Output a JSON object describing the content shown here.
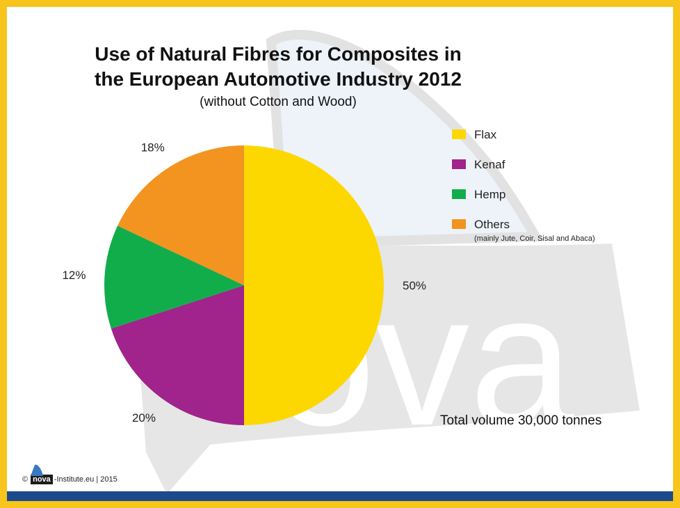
{
  "colors": {
    "background_border": "#f7c51b",
    "bottom_bar": "#1d4a8c",
    "watermark": "#e5e5e5",
    "watermark_light": "#edf3f9"
  },
  "chart_data": {
    "type": "pie",
    "title_line1": "Use of Natural Fibres for Composites in",
    "title_line2": "the European Automotive Industry 2012",
    "subtitle": "(without Cotton and Wood)",
    "slices": [
      {
        "name": "Flax",
        "value": 50,
        "label": "50%",
        "color": "#fcd800"
      },
      {
        "name": "Kenaf",
        "value": 20,
        "label": "20%",
        "color": "#a0248b"
      },
      {
        "name": "Hemp",
        "value": 12,
        "label": "12%",
        "color": "#12ad4b"
      },
      {
        "name": "Others",
        "value": 18,
        "label": "18%",
        "color": "#f39320"
      }
    ],
    "legend": {
      "placement": "right",
      "others_note": "(mainly Jute, Coir, Sisal and Abaca)"
    },
    "annotation": "Total volume 30,000 tonnes"
  },
  "footer": {
    "copyright": "©",
    "logo_text": "nova",
    "suffix": "-Institute.eu | 2015"
  }
}
